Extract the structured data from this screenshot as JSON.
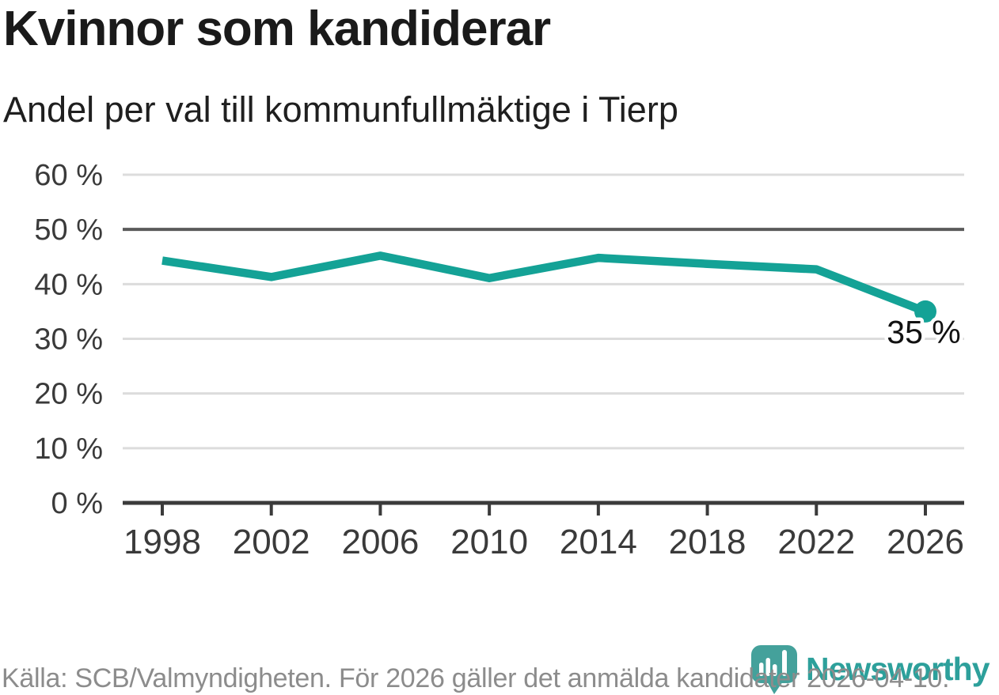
{
  "chart_data": {
    "type": "line",
    "title": "Kvinnor som kandiderar",
    "subtitle": "Andel per val till kommunfullmäktige i Tierp",
    "categories": [
      "1998",
      "2002",
      "2006",
      "2010",
      "2014",
      "2018",
      "2022",
      "2026"
    ],
    "values": [
      44.3,
      41.3,
      45.2,
      41.1,
      44.8,
      43.7,
      42.7,
      35
    ],
    "end_label": "35 %",
    "xlabel": "",
    "ylabel": "",
    "ylim": [
      0,
      60
    ],
    "yticks": [
      0,
      10,
      20,
      30,
      40,
      50,
      60
    ],
    "ytick_suffix": " %",
    "reference_line_y": 50,
    "grid": "horizontal",
    "legend": "none",
    "colors": {
      "line": "#14a296",
      "grid": "#dcdcdc",
      "reference": "#5a5a5a",
      "axis": "#3b3b3b",
      "tick_label": "#3a3a3a",
      "end_label": "#111111"
    }
  },
  "footer": {
    "source_text": "Källa: SCB/Valmyndigheten. För 2026 gäller det anmälda kandidater 2026-04-10.",
    "brand": "Newsworthy",
    "brand_color": "#2da09b",
    "icon": "newsworthy-pin-barchart-icon",
    "icon_color": "#44a19b",
    "icon_bar_color": "#ffffff"
  }
}
